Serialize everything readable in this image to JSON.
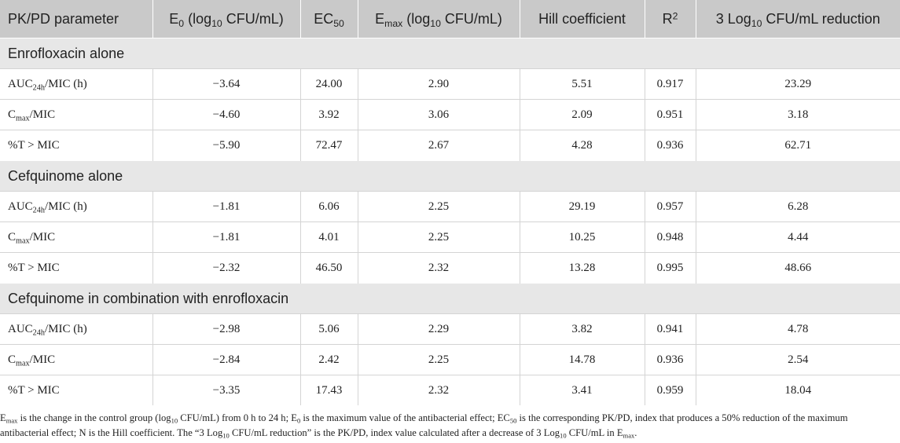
{
  "table": {
    "headers": [
      {
        "pre": "PK/PD parameter"
      },
      {
        "pre": "E",
        "sub": "0",
        "post": " (log",
        "sub2": "10",
        "post2": " CFU/mL)"
      },
      {
        "pre": "EC",
        "sub": "50"
      },
      {
        "pre": "E",
        "sub": "max",
        "post": " (log",
        "sub2": "10",
        "post2": " CFU/mL)"
      },
      {
        "pre": "Hill coefficient"
      },
      {
        "pre": "R",
        "sup": "2"
      },
      {
        "pre": "3 Log",
        "sub": "10",
        "post": " CFU/mL reduction"
      }
    ],
    "groups": [
      {
        "title": "Enrofloxacin alone",
        "rows": [
          {
            "param": {
              "pre": "AUC",
              "sub": "24h",
              "post": "/MIC (h)"
            },
            "values": [
              "−3.64",
              "24.00",
              "2.90",
              "5.51",
              "0.917",
              "23.29"
            ]
          },
          {
            "param": {
              "pre": "C",
              "sub": "max",
              "post": "/MIC"
            },
            "values": [
              "−4.60",
              "3.92",
              "3.06",
              "2.09",
              "0.951",
              "3.18"
            ]
          },
          {
            "param": {
              "pre": "%T > MIC"
            },
            "values": [
              "−5.90",
              "72.47",
              "2.67",
              "4.28",
              "0.936",
              "62.71"
            ]
          }
        ]
      },
      {
        "title": "Cefquinome alone",
        "rows": [
          {
            "param": {
              "pre": "AUC",
              "sub": "24h",
              "post": "/MIC (h)"
            },
            "values": [
              "−1.81",
              "6.06",
              "2.25",
              "29.19",
              "0.957",
              "6.28"
            ]
          },
          {
            "param": {
              "pre": "C",
              "sub": "max",
              "post": "/MIC"
            },
            "values": [
              "−1.81",
              "4.01",
              "2.25",
              "10.25",
              "0.948",
              "4.44"
            ]
          },
          {
            "param": {
              "pre": "%T > MIC"
            },
            "values": [
              "−2.32",
              "46.50",
              "2.32",
              "13.28",
              "0.995",
              "48.66"
            ]
          }
        ]
      },
      {
        "title": "Cefquinome in combination with enrofloxacin",
        "rows": [
          {
            "param": {
              "pre": "AUC",
              "sub": "24h",
              "post": "/MIC (h)"
            },
            "values": [
              "−2.98",
              "5.06",
              "2.29",
              "3.82",
              "0.941",
              "4.78"
            ]
          },
          {
            "param": {
              "pre": "C",
              "sub": "max",
              "post": "/MIC"
            },
            "values": [
              "−2.84",
              "2.42",
              "2.25",
              "14.78",
              "0.936",
              "2.54"
            ]
          },
          {
            "param": {
              "pre": "%T > MIC"
            },
            "values": [
              "−3.35",
              "17.43",
              "2.32",
              "3.41",
              "0.959",
              "18.04"
            ]
          }
        ]
      }
    ]
  },
  "footnote": {
    "p1": "E",
    "s1": "max",
    "p2": " is the change in the control group (log",
    "s2": "10",
    "p3": " CFU/mL) from 0 h to 24 h; E",
    "s3": "0",
    "p4": " is the maximum value of the antibacterial effect; EC",
    "s4": "50",
    "p5": " is the corresponding PK/PD, index that produces a 50% reduction of the maximum antibacterial effect; N is the Hill coefficient. The “3 Log",
    "s5": "10",
    "p6": " CFU/mL reduction” is the PK/PD, index value calculated after a decrease of 3 Log",
    "s6": "10",
    "p7": " CFU/mL in E",
    "s7": "max",
    "p8": "."
  }
}
